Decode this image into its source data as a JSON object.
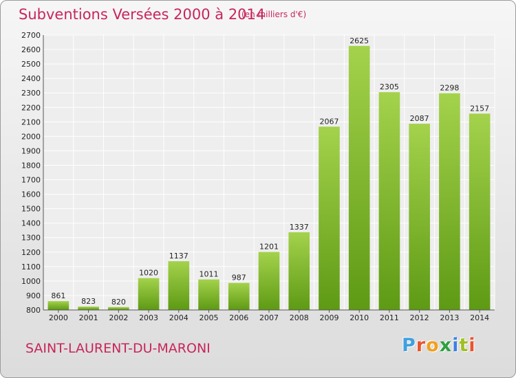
{
  "header": {
    "title": "Subventions Versées 2000 à 2014",
    "unit_note": "(en milliers d'€)"
  },
  "footer": {
    "town": "SAINT-LAURENT-DU-MARONI",
    "brand": {
      "letters": [
        "P",
        "r",
        "o",
        "x",
        "i",
        "t",
        "i"
      ],
      "colors": [
        "#3fa0e0",
        "#e8542e",
        "#f0a020",
        "#2fa040",
        "#3f7fe0",
        "#9fc020",
        "#e8542e"
      ]
    }
  },
  "chart_data": {
    "type": "bar",
    "title": "Subventions Versées 2000 à 2014",
    "subtitle": "(en milliers d'€)",
    "xlabel": "",
    "ylabel": "",
    "categories": [
      "2000",
      "2001",
      "2002",
      "2003",
      "2004",
      "2005",
      "2006",
      "2007",
      "2008",
      "2009",
      "2010",
      "2011",
      "2012",
      "2013",
      "2014"
    ],
    "values": [
      861,
      823,
      820,
      1020,
      1137,
      1011,
      987,
      1201,
      1337,
      2067,
      2625,
      2305,
      2087,
      2298,
      2157
    ],
    "ylim": [
      800,
      2700
    ],
    "ytick_step": 100,
    "grid": true,
    "legend": "none",
    "bar_color_top": "#a4d24c",
    "bar_color_bottom": "#5e9a14"
  }
}
